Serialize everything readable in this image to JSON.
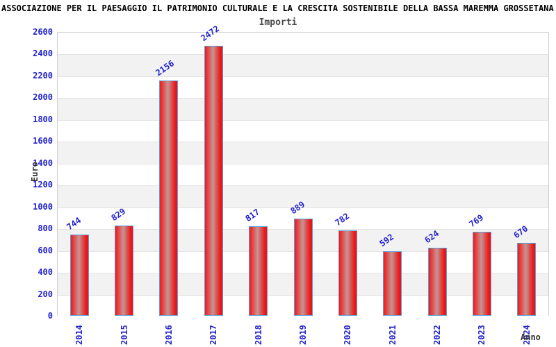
{
  "title": "ASSOCIAZIONE PER IL PAESAGGIO IL PATRIMONIO CULTURALE E LA CRESCITA SOSTENIBILE DELLA BASSA MAREMMA GROSSETANA (c.",
  "subtitle": "Importi",
  "chart_data": {
    "type": "bar",
    "title": "Importi",
    "categories": [
      "2014",
      "2015",
      "2016",
      "2017",
      "2018",
      "2019",
      "2020",
      "2021",
      "2022",
      "2023",
      "2024"
    ],
    "values": [
      744,
      829,
      2156,
      2472,
      817,
      889,
      782,
      592,
      624,
      769,
      670
    ],
    "xlabel": "Anno",
    "ylabel": "Euro",
    "ylim": [
      0,
      2600
    ],
    "ytick_step": 200,
    "grid": "horizontal gridlines with alternating shaded bands",
    "legend": "none",
    "data_labels": "rotated above bars"
  },
  "colors": {
    "bar_red": "#ee1414",
    "bar_center_highlight": "#c59595",
    "bar_border": "#58a0dd",
    "tick_label_blue": "#2222cc",
    "band_gray": "#f2f2f2",
    "grid_line": "#e3e3e3",
    "plot_border": "#cfcfcf",
    "axis_title_color": "#333333",
    "title_color": "#000000",
    "subtitle_color": "#4a4a4a",
    "background": "#ffffff"
  }
}
